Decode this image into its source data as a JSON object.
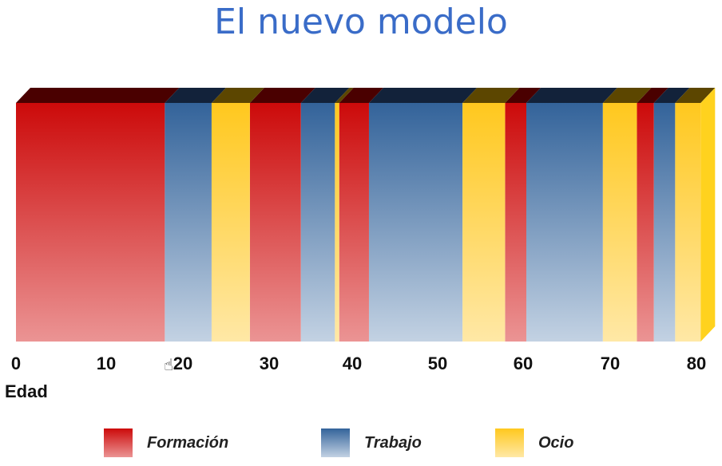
{
  "title": "El nuevo modelo",
  "chart_data": {
    "type": "bar",
    "orientation": "horizontal-stacked-timeline",
    "xlabel": "Edad",
    "xlim": [
      0,
      80
    ],
    "tick_labels": [
      "0",
      "10",
      "20",
      "30",
      "40",
      "50",
      "60",
      "70",
      "80"
    ],
    "series": [
      {
        "name": "Formación",
        "color": "#cc0a0a",
        "segments": [
          [
            0,
            17.5
          ],
          [
            27.5,
            33.5
          ],
          [
            38,
            41.5
          ],
          [
            57.5,
            60
          ],
          [
            73,
            75
          ]
        ]
      },
      {
        "name": "Trabajo",
        "color": "#3a6699",
        "segments": [
          [
            17.5,
            23
          ],
          [
            33.5,
            37.5
          ],
          [
            41.5,
            52.5
          ],
          [
            60,
            69
          ],
          [
            75,
            77.5
          ]
        ]
      },
      {
        "name": "Ocio",
        "color": "#ffc81e",
        "segments": [
          [
            23,
            27.5
          ],
          [
            37.5,
            38
          ],
          [
            52.5,
            57.5
          ],
          [
            69,
            73
          ],
          [
            77.5,
            80.5
          ]
        ]
      }
    ]
  },
  "legend": [
    {
      "label": "Formación"
    },
    {
      "label": "Trabajo"
    },
    {
      "label": "Ocio"
    }
  ],
  "cursor_icon": "hand-pointer-icon"
}
